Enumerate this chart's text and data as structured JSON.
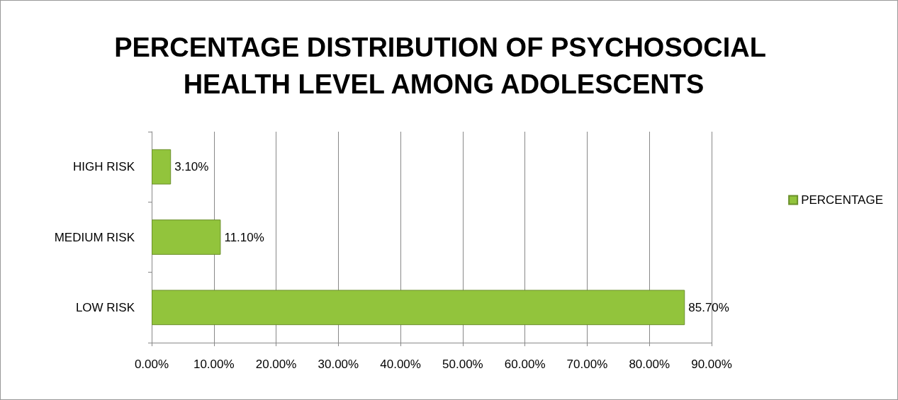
{
  "chart_data": {
    "type": "bar",
    "orientation": "horizontal",
    "title": "PERCENTAGE DISTRIBUTION OF PSYCHOSOCIAL HEALTH LEVEL AMONG ADOLESCENTS",
    "categories": [
      "HIGH RISK",
      "MEDIUM RISK",
      "LOW RISK"
    ],
    "series": [
      {
        "name": "PERCENTAGE",
        "color": "#92c43c",
        "values": [
          3.1,
          11.1,
          85.7
        ],
        "value_labels": [
          "3.10%",
          "11.10%",
          "85.70%"
        ]
      }
    ],
    "xlim": [
      0,
      90
    ],
    "xticks": [
      {
        "value": 0,
        "label": "0.00%"
      },
      {
        "value": 10,
        "label": "10.00%"
      },
      {
        "value": 20,
        "label": "20.00%"
      },
      {
        "value": 30,
        "label": "30.00%"
      },
      {
        "value": 40,
        "label": "40.00%"
      },
      {
        "value": 50,
        "label": "50.00%"
      },
      {
        "value": 60,
        "label": "60.00%"
      },
      {
        "value": 70,
        "label": "70.00%"
      },
      {
        "value": 80,
        "label": "80.00%"
      },
      {
        "value": 90,
        "label": "90.00%"
      }
    ],
    "grid": "x",
    "legend": "right"
  }
}
